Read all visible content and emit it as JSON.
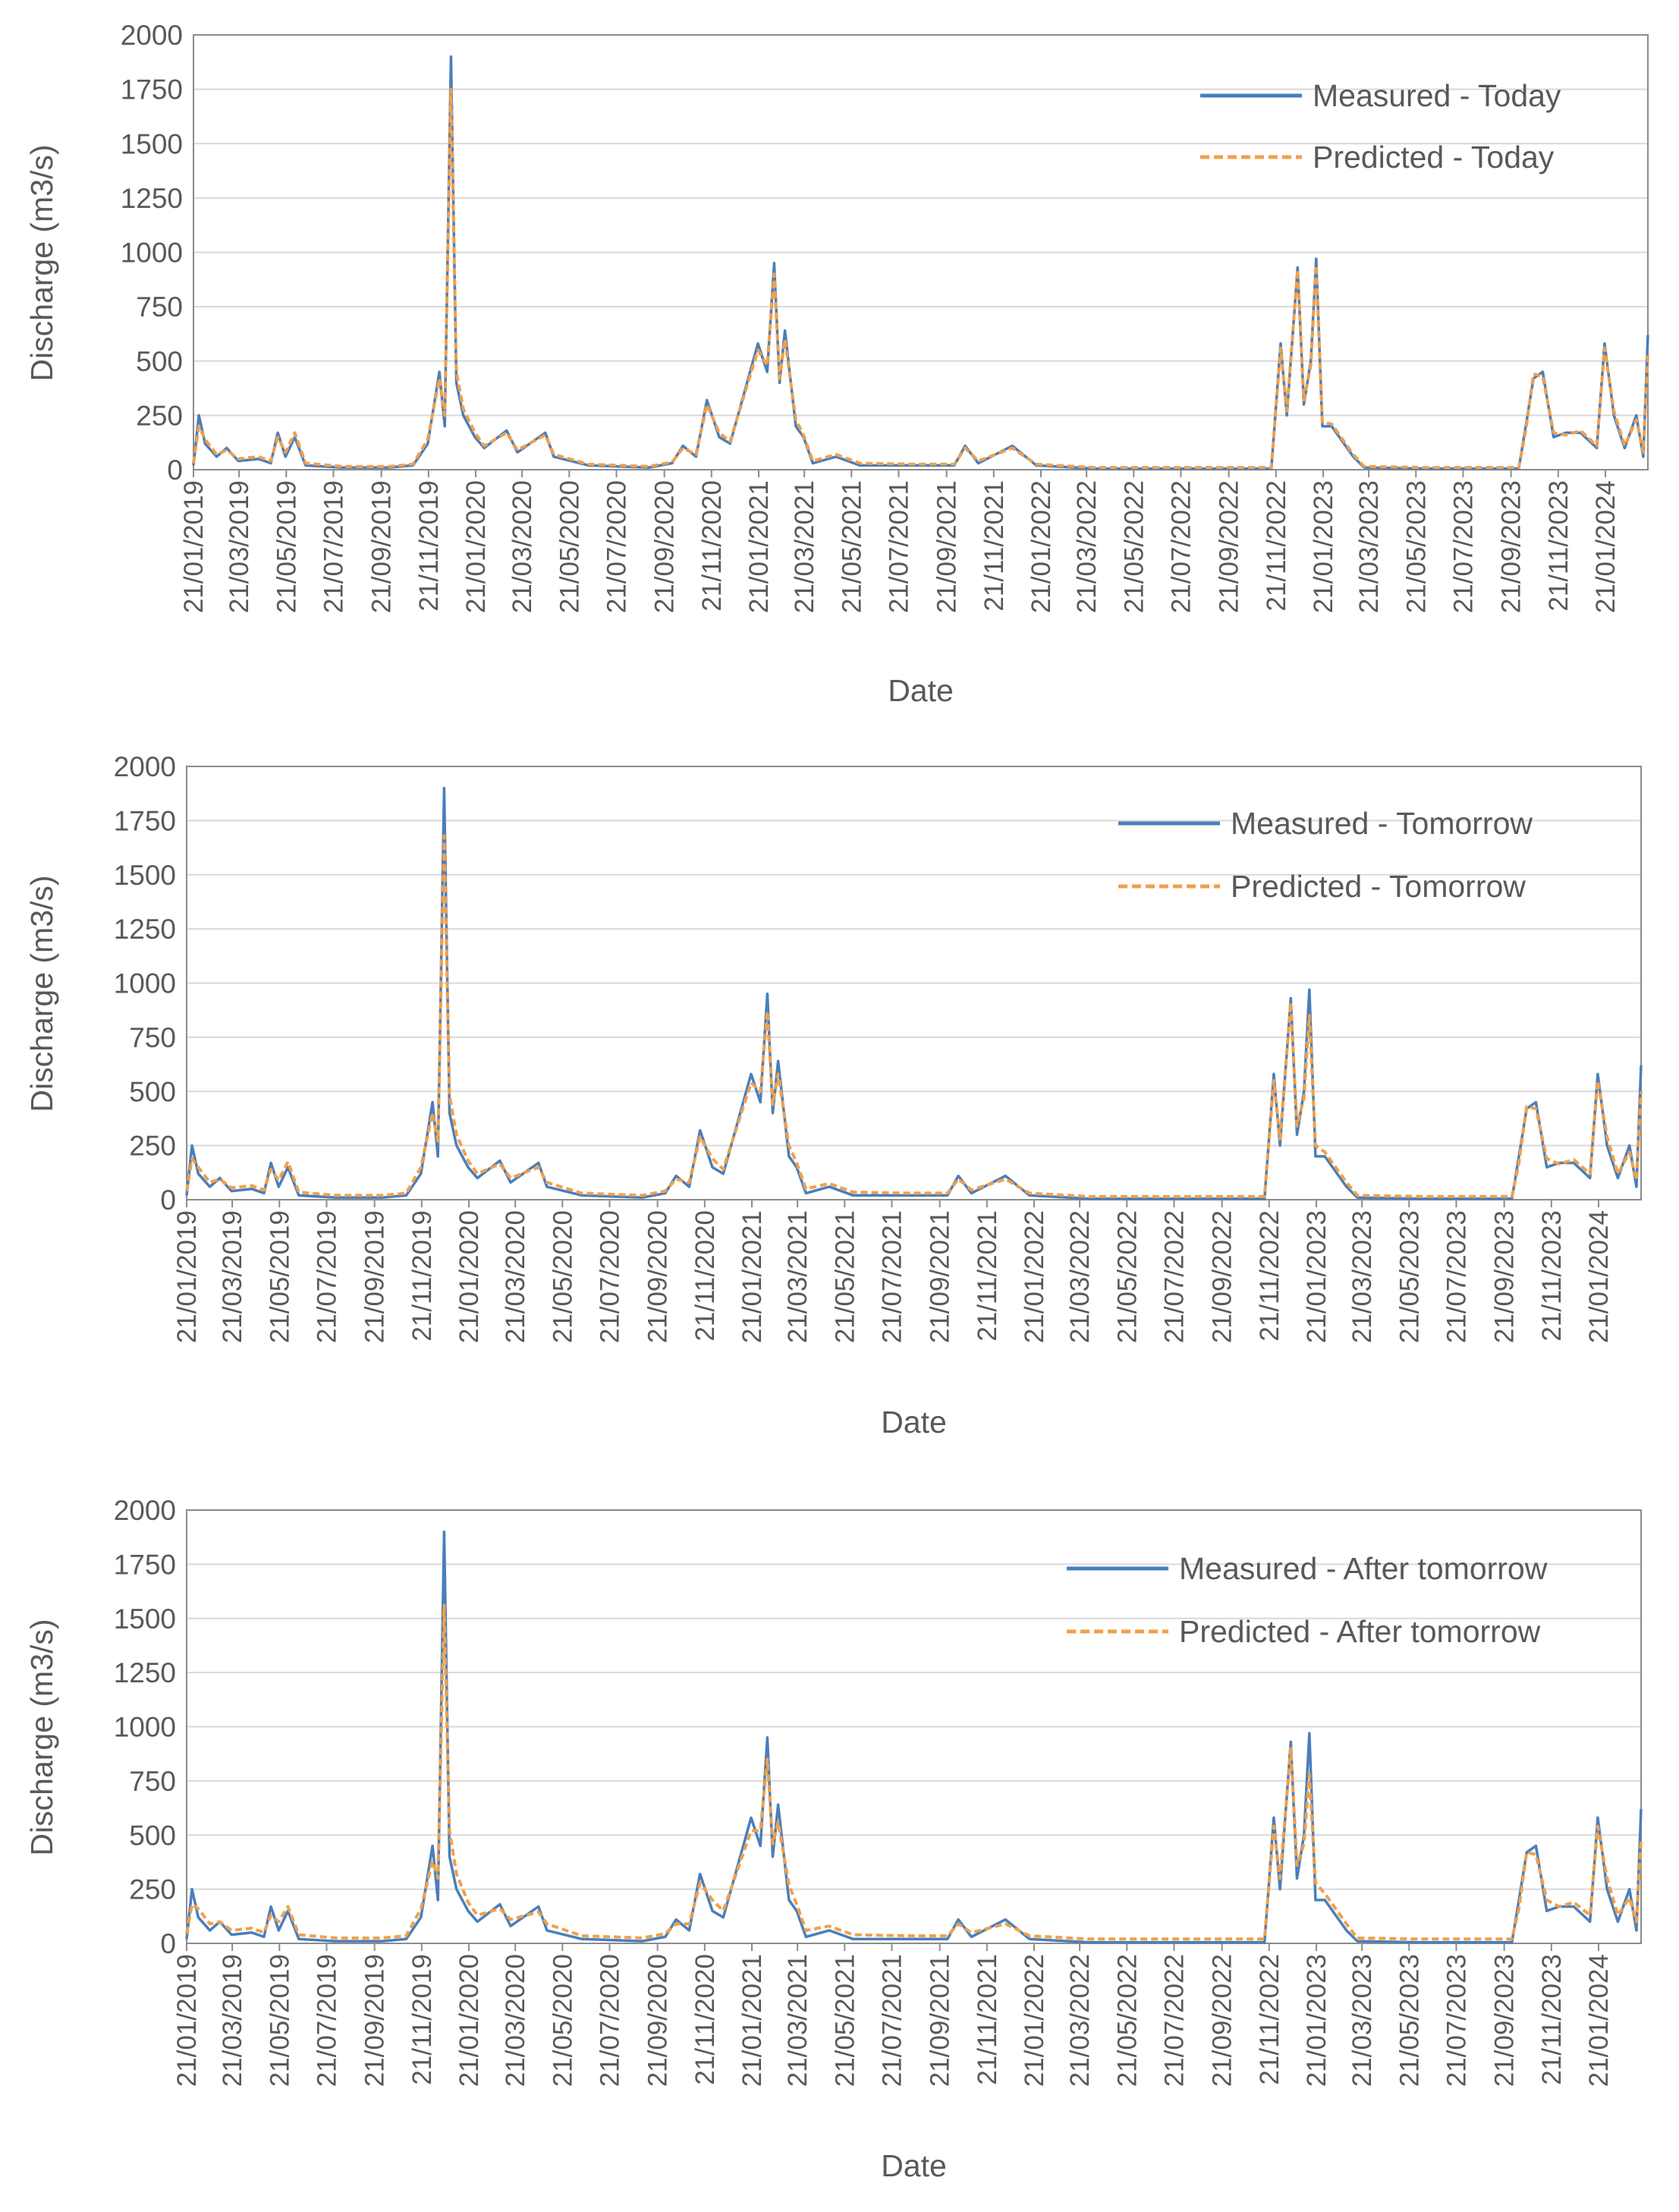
{
  "chart_data": [
    {
      "type": "line",
      "x_label": "Date",
      "y_label": "Discharge (m3/s)",
      "grid": true,
      "legend": "upper right",
      "xlim": [
        "21/01/2019",
        "16/03/2024"
      ],
      "xticks": [
        "21/01/2019",
        "21/03/2019",
        "21/05/2019",
        "21/07/2019",
        "21/09/2019",
        "21/11/2019",
        "21/01/2020",
        "21/03/2020",
        "21/05/2020",
        "21/07/2020",
        "21/09/2020",
        "21/11/2020",
        "21/01/2021",
        "21/03/2021",
        "21/05/2021",
        "21/07/2021",
        "21/09/2021",
        "21/11/2021",
        "21/01/2022",
        "21/03/2022",
        "21/05/2022",
        "21/07/2022",
        "21/09/2022",
        "21/11/2022",
        "21/01/2023",
        "21/03/2023",
        "21/05/2023",
        "21/07/2023",
        "21/09/2023",
        "21/11/2023",
        "21/01/2024"
      ],
      "ylim": [
        0,
        2000
      ],
      "yticks": [
        0,
        250,
        500,
        750,
        1000,
        1250,
        1500,
        1750,
        2000
      ],
      "x": [
        "21/01/2019",
        "28/01/2019",
        "05/02/2019",
        "20/02/2019",
        "05/03/2019",
        "20/03/2019",
        "15/04/2019",
        "01/05/2019",
        "10/05/2019",
        "20/05/2019",
        "01/06/2019",
        "15/06/2019",
        "01/08/2019",
        "01/10/2019",
        "01/11/2019",
        "20/11/2019",
        "05/12/2019",
        "12/12/2019",
        "20/12/2019",
        "27/12/2019",
        "05/01/2020",
        "20/01/2020",
        "01/02/2020",
        "01/03/2020",
        "15/03/2020",
        "20/04/2020",
        "01/05/2020",
        "15/06/2020",
        "01/09/2020",
        "01/10/2020",
        "15/10/2020",
        "01/11/2020",
        "15/11/2020",
        "01/12/2020",
        "15/12/2020",
        "20/01/2021",
        "01/02/2021",
        "10/02/2021",
        "17/02/2021",
        "24/02/2021",
        "10/03/2021",
        "20/03/2021",
        "01/04/2021",
        "01/05/2021",
        "01/06/2021",
        "15/08/2021",
        "01/10/2021",
        "15/10/2021",
        "01/11/2021",
        "15/12/2021",
        "15/01/2022",
        "01/04/2022",
        "01/08/2022",
        "15/11/2022",
        "27/11/2022",
        "05/12/2022",
        "19/12/2022",
        "27/12/2022",
        "05/01/2023",
        "12/01/2023",
        "20/01/2023",
        "01/02/2023",
        "01/03/2023",
        "15/03/2023",
        "01/06/2023",
        "01/09/2023",
        "01/10/2023",
        "10/10/2023",
        "20/10/2023",
        "01/11/2023",
        "15/11/2023",
        "01/12/2023",
        "20/12/2023",
        "10/01/2024",
        "20/01/2024",
        "01/02/2024",
        "15/02/2024",
        "01/03/2024",
        "10/03/2024",
        "16/03/2024"
      ],
      "series": [
        {
          "name": "Measured - Today",
          "color": "#4a7ebb",
          "style": "solid",
          "values": [
            20,
            250,
            120,
            60,
            100,
            40,
            50,
            30,
            170,
            60,
            150,
            20,
            10,
            10,
            20,
            120,
            450,
            200,
            1900,
            400,
            250,
            150,
            100,
            180,
            80,
            170,
            60,
            20,
            10,
            30,
            110,
            60,
            320,
            150,
            120,
            580,
            450,
            950,
            400,
            640,
            200,
            150,
            30,
            60,
            20,
            20,
            20,
            110,
            30,
            110,
            20,
            5,
            5,
            5,
            580,
            250,
            930,
            300,
            500,
            970,
            200,
            200,
            60,
            10,
            5,
            5,
            5,
            200,
            420,
            450,
            150,
            170,
            170,
            100,
            580,
            250,
            100,
            250,
            60,
            620
          ]
        },
        {
          "name": "Predicted - Today",
          "color": "#f0a04b",
          "style": "dashed",
          "values": [
            30,
            200,
            140,
            70,
            90,
            50,
            60,
            40,
            150,
            80,
            170,
            30,
            15,
            15,
            25,
            140,
            420,
            250,
            1750,
            450,
            280,
            170,
            110,
            170,
            90,
            160,
            70,
            25,
            15,
            35,
            100,
            70,
            300,
            170,
            130,
            550,
            480,
            900,
            420,
            600,
            230,
            160,
            40,
            70,
            30,
            25,
            25,
            100,
            40,
            100,
            25,
            10,
            10,
            10,
            560,
            270,
            920,
            320,
            480,
            940,
            220,
            210,
            70,
            15,
            10,
            10,
            10,
            180,
            440,
            430,
            170,
            160,
            180,
            110,
            560,
            270,
            110,
            230,
            80,
            540
          ]
        }
      ]
    },
    {
      "type": "line",
      "x_label": "Date",
      "y_label": "Discharge (m3/s)",
      "grid": true,
      "legend": "upper right",
      "xlim": [
        "21/01/2019",
        "16/03/2024"
      ],
      "xticks": [
        "21/01/2019",
        "21/03/2019",
        "21/05/2019",
        "21/07/2019",
        "21/09/2019",
        "21/11/2019",
        "21/01/2020",
        "21/03/2020",
        "21/05/2020",
        "21/07/2020",
        "21/09/2020",
        "21/11/2020",
        "21/01/2021",
        "21/03/2021",
        "21/05/2021",
        "21/07/2021",
        "21/09/2021",
        "21/11/2021",
        "21/01/2022",
        "21/03/2022",
        "21/05/2022",
        "21/07/2022",
        "21/09/2022",
        "21/11/2022",
        "21/01/2023",
        "21/03/2023",
        "21/05/2023",
        "21/07/2023",
        "21/09/2023",
        "21/11/2023",
        "21/01/2024"
      ],
      "ylim": [
        0,
        2000
      ],
      "yticks": [
        0,
        250,
        500,
        750,
        1000,
        1250,
        1500,
        1750,
        2000
      ],
      "x": [
        "21/01/2019",
        "28/01/2019",
        "05/02/2019",
        "20/02/2019",
        "05/03/2019",
        "20/03/2019",
        "15/04/2019",
        "01/05/2019",
        "10/05/2019",
        "20/05/2019",
        "01/06/2019",
        "15/06/2019",
        "01/08/2019",
        "01/10/2019",
        "01/11/2019",
        "20/11/2019",
        "05/12/2019",
        "12/12/2019",
        "20/12/2019",
        "27/12/2019",
        "05/01/2020",
        "20/01/2020",
        "01/02/2020",
        "01/03/2020",
        "15/03/2020",
        "20/04/2020",
        "01/05/2020",
        "15/06/2020",
        "01/09/2020",
        "01/10/2020",
        "15/10/2020",
        "01/11/2020",
        "15/11/2020",
        "01/12/2020",
        "15/12/2020",
        "20/01/2021",
        "01/02/2021",
        "10/02/2021",
        "17/02/2021",
        "24/02/2021",
        "10/03/2021",
        "20/03/2021",
        "01/04/2021",
        "01/05/2021",
        "01/06/2021",
        "15/08/2021",
        "01/10/2021",
        "15/10/2021",
        "01/11/2021",
        "15/12/2021",
        "15/01/2022",
        "01/04/2022",
        "01/08/2022",
        "15/11/2022",
        "27/11/2022",
        "05/12/2022",
        "19/12/2022",
        "27/12/2022",
        "05/01/2023",
        "12/01/2023",
        "20/01/2023",
        "01/02/2023",
        "01/03/2023",
        "15/03/2023",
        "01/06/2023",
        "01/09/2023",
        "01/10/2023",
        "10/10/2023",
        "20/10/2023",
        "01/11/2023",
        "15/11/2023",
        "01/12/2023",
        "20/12/2023",
        "10/01/2024",
        "20/01/2024",
        "01/02/2024",
        "15/02/2024",
        "01/03/2024",
        "10/03/2024",
        "16/03/2024"
      ],
      "series": [
        {
          "name": "Measured - Tomorrow",
          "color": "#4a7ebb",
          "style": "solid",
          "values": [
            20,
            250,
            120,
            60,
            100,
            40,
            50,
            30,
            170,
            60,
            150,
            20,
            10,
            10,
            20,
            120,
            450,
            200,
            1900,
            400,
            250,
            150,
            100,
            180,
            80,
            170,
            60,
            20,
            10,
            30,
            110,
            60,
            320,
            150,
            120,
            580,
            450,
            950,
            400,
            640,
            200,
            150,
            30,
            60,
            20,
            20,
            20,
            110,
            30,
            110,
            20,
            5,
            5,
            5,
            580,
            250,
            930,
            300,
            500,
            970,
            200,
            200,
            60,
            10,
            5,
            5,
            5,
            200,
            420,
            450,
            150,
            170,
            170,
            100,
            580,
            250,
            100,
            250,
            60,
            620
          ]
        },
        {
          "name": "Predicted - Tomorrow",
          "color": "#f0a04b",
          "style": "dashed",
          "values": [
            40,
            190,
            150,
            80,
            95,
            55,
            65,
            45,
            140,
            90,
            175,
            35,
            20,
            20,
            30,
            150,
            400,
            270,
            1680,
            480,
            300,
            180,
            120,
            165,
            100,
            150,
            80,
            30,
            20,
            40,
            95,
            80,
            290,
            190,
            140,
            540,
            500,
            870,
            440,
            580,
            250,
            170,
            50,
            75,
            35,
            30,
            30,
            95,
            45,
            95,
            30,
            15,
            15,
            15,
            550,
            280,
            910,
            340,
            470,
            850,
            250,
            220,
            80,
            20,
            15,
            15,
            15,
            170,
            430,
            420,
            190,
            165,
            185,
            120,
            550,
            290,
            120,
            220,
            90,
            500
          ]
        }
      ]
    },
    {
      "type": "line",
      "x_label": "Date",
      "y_label": "Discharge (m3/s)",
      "grid": true,
      "legend": "upper right",
      "xlim": [
        "21/01/2019",
        "16/03/2024"
      ],
      "xticks": [
        "21/01/2019",
        "21/03/2019",
        "21/05/2019",
        "21/07/2019",
        "21/09/2019",
        "21/11/2019",
        "21/01/2020",
        "21/03/2020",
        "21/05/2020",
        "21/07/2020",
        "21/09/2020",
        "21/11/2020",
        "21/01/2021",
        "21/03/2021",
        "21/05/2021",
        "21/07/2021",
        "21/09/2021",
        "21/11/2021",
        "21/01/2022",
        "21/03/2022",
        "21/05/2022",
        "21/07/2022",
        "21/09/2022",
        "21/11/2022",
        "21/01/2023",
        "21/03/2023",
        "21/05/2023",
        "21/07/2023",
        "21/09/2023",
        "21/11/2023",
        "21/01/2024"
      ],
      "ylim": [
        0,
        2000
      ],
      "yticks": [
        0,
        250,
        500,
        750,
        1000,
        1250,
        1500,
        1750,
        2000
      ],
      "x": [
        "21/01/2019",
        "28/01/2019",
        "05/02/2019",
        "20/02/2019",
        "05/03/2019",
        "20/03/2019",
        "15/04/2019",
        "01/05/2019",
        "10/05/2019",
        "20/05/2019",
        "01/06/2019",
        "15/06/2019",
        "01/08/2019",
        "01/10/2019",
        "01/11/2019",
        "20/11/2019",
        "05/12/2019",
        "12/12/2019",
        "20/12/2019",
        "27/12/2019",
        "05/01/2020",
        "20/01/2020",
        "01/02/2020",
        "01/03/2020",
        "15/03/2020",
        "20/04/2020",
        "01/05/2020",
        "15/06/2020",
        "01/09/2020",
        "01/10/2020",
        "15/10/2020",
        "01/11/2020",
        "15/11/2020",
        "01/12/2020",
        "15/12/2020",
        "20/01/2021",
        "01/02/2021",
        "10/02/2021",
        "17/02/2021",
        "24/02/2021",
        "10/03/2021",
        "20/03/2021",
        "01/04/2021",
        "01/05/2021",
        "01/06/2021",
        "15/08/2021",
        "01/10/2021",
        "15/10/2021",
        "01/11/2021",
        "15/12/2021",
        "15/01/2022",
        "01/04/2022",
        "01/08/2022",
        "15/11/2022",
        "27/11/2022",
        "05/12/2022",
        "19/12/2022",
        "27/12/2022",
        "05/01/2023",
        "12/01/2023",
        "20/01/2023",
        "01/02/2023",
        "01/03/2023",
        "15/03/2023",
        "01/06/2023",
        "01/09/2023",
        "01/10/2023",
        "10/10/2023",
        "20/10/2023",
        "01/11/2023",
        "15/11/2023",
        "01/12/2023",
        "20/12/2023",
        "10/01/2024",
        "20/01/2024",
        "01/02/2024",
        "15/02/2024",
        "01/03/2024",
        "10/03/2024",
        "16/03/2024"
      ],
      "series": [
        {
          "name": "Measured - After tomorrow",
          "color": "#4a7ebb",
          "style": "solid",
          "values": [
            20,
            250,
            120,
            60,
            100,
            40,
            50,
            30,
            170,
            60,
            150,
            20,
            10,
            10,
            20,
            120,
            450,
            200,
            1900,
            400,
            250,
            150,
            100,
            180,
            80,
            170,
            60,
            20,
            10,
            30,
            110,
            60,
            320,
            150,
            120,
            580,
            450,
            950,
            400,
            640,
            200,
            150,
            30,
            60,
            20,
            20,
            20,
            110,
            30,
            110,
            20,
            5,
            5,
            5,
            580,
            250,
            930,
            300,
            500,
            970,
            200,
            200,
            60,
            10,
            5,
            5,
            5,
            200,
            420,
            450,
            150,
            170,
            170,
            100,
            580,
            250,
            100,
            250,
            60,
            620
          ]
        },
        {
          "name": "Predicted - After tomorrow",
          "color": "#f0a04b",
          "style": "dashed",
          "values": [
            45,
            180,
            160,
            90,
            100,
            60,
            70,
            50,
            130,
            100,
            170,
            40,
            25,
            25,
            35,
            160,
            380,
            300,
            1560,
            520,
            320,
            190,
            130,
            160,
            110,
            145,
            90,
            35,
            25,
            45,
            90,
            90,
            280,
            200,
            150,
            520,
            520,
            850,
            460,
            560,
            270,
            180,
            60,
            80,
            40,
            35,
            35,
            90,
            50,
            90,
            35,
            20,
            20,
            20,
            540,
            300,
            900,
            360,
            460,
            780,
            280,
            230,
            90,
            25,
            20,
            20,
            20,
            160,
            420,
            410,
            200,
            170,
            190,
            130,
            540,
            300,
            130,
            210,
            100,
            480
          ]
        }
      ]
    }
  ]
}
